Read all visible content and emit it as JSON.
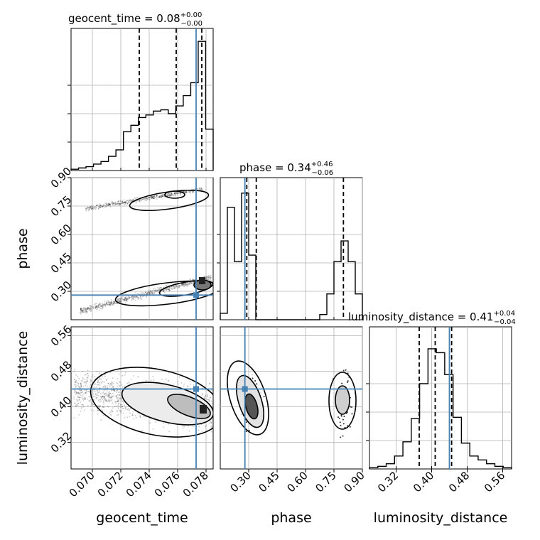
{
  "chart_data": {
    "type": "corner",
    "parameters": [
      "geocent_time",
      "phase",
      "luminosity_distance"
    ],
    "truths": {
      "geocent_time": 0.0773,
      "phase": 0.28,
      "luminosity_distance": 0.44
    },
    "panels": {
      "geocent_time": {
        "title": "geocent_time = 0.08",
        "title_sup": "+0.00",
        "title_sub": "−0.00",
        "range": [
          0.0685,
          0.0785
        ],
        "ticks": [
          "0.070",
          "0.072",
          "0.074",
          "0.076",
          "0.078"
        ],
        "tick_values": [
          0.07,
          0.072,
          0.074,
          0.076,
          0.078
        ],
        "quantiles": [
          0.0733,
          0.0759,
          0.0777
        ],
        "hist_counts": [
          0.01,
          0.02,
          0.03,
          0.05,
          0.07,
          0.11,
          0.16,
          0.3,
          0.35,
          0.41,
          0.43,
          0.46,
          0.47,
          0.44,
          0.5,
          0.58,
          0.68,
          1.0,
          0.32
        ]
      },
      "phase": {
        "title": "phase = 0.34",
        "title_sup": "+0.46",
        "title_sub": "−0.06",
        "range": [
          0.15,
          0.9
        ],
        "ticks": [
          "0.30",
          "0.45",
          "0.60",
          "0.75",
          "0.90"
        ],
        "tick_values": [
          0.3,
          0.45,
          0.6,
          0.75,
          0.9
        ],
        "quantiles": [
          0.29,
          0.34,
          0.8
        ],
        "hist_counts": [
          0.05,
          0.87,
          0.45,
          0.98,
          0.5,
          0.0,
          0.0,
          0.0,
          0.0,
          0.0,
          0.0,
          0.0,
          0.0,
          0.0,
          0.04,
          0.2,
          0.45,
          0.61,
          0.45,
          0.2
        ]
      },
      "luminosity_distance": {
        "title": "luminosity_distance = 0.41",
        "title_sup": "+0.04",
        "title_sub": "−0.04",
        "range": [
          0.26,
          0.58
        ],
        "ticks": [
          "0.32",
          "0.40",
          "0.48",
          "0.56"
        ],
        "tick_values": [
          0.32,
          0.4,
          0.48,
          0.56
        ],
        "quantiles": [
          0.372,
          0.408,
          0.445
        ],
        "hist_counts": [
          0.01,
          0.02,
          0.04,
          0.1,
          0.21,
          0.39,
          0.66,
          0.93,
          0.9,
          0.73,
          0.4,
          0.2,
          0.1,
          0.07,
          0.04,
          0.02,
          0.01
        ]
      }
    },
    "axis_labels": {
      "x": [
        "geocent_time",
        "phase",
        "luminosity_distance"
      ],
      "y": [
        "phase",
        "luminosity_distance"
      ]
    },
    "colors": {
      "truth": "#4682b4",
      "hist": "#000000",
      "grid": "#b0b0b0",
      "points": "#333333"
    }
  }
}
